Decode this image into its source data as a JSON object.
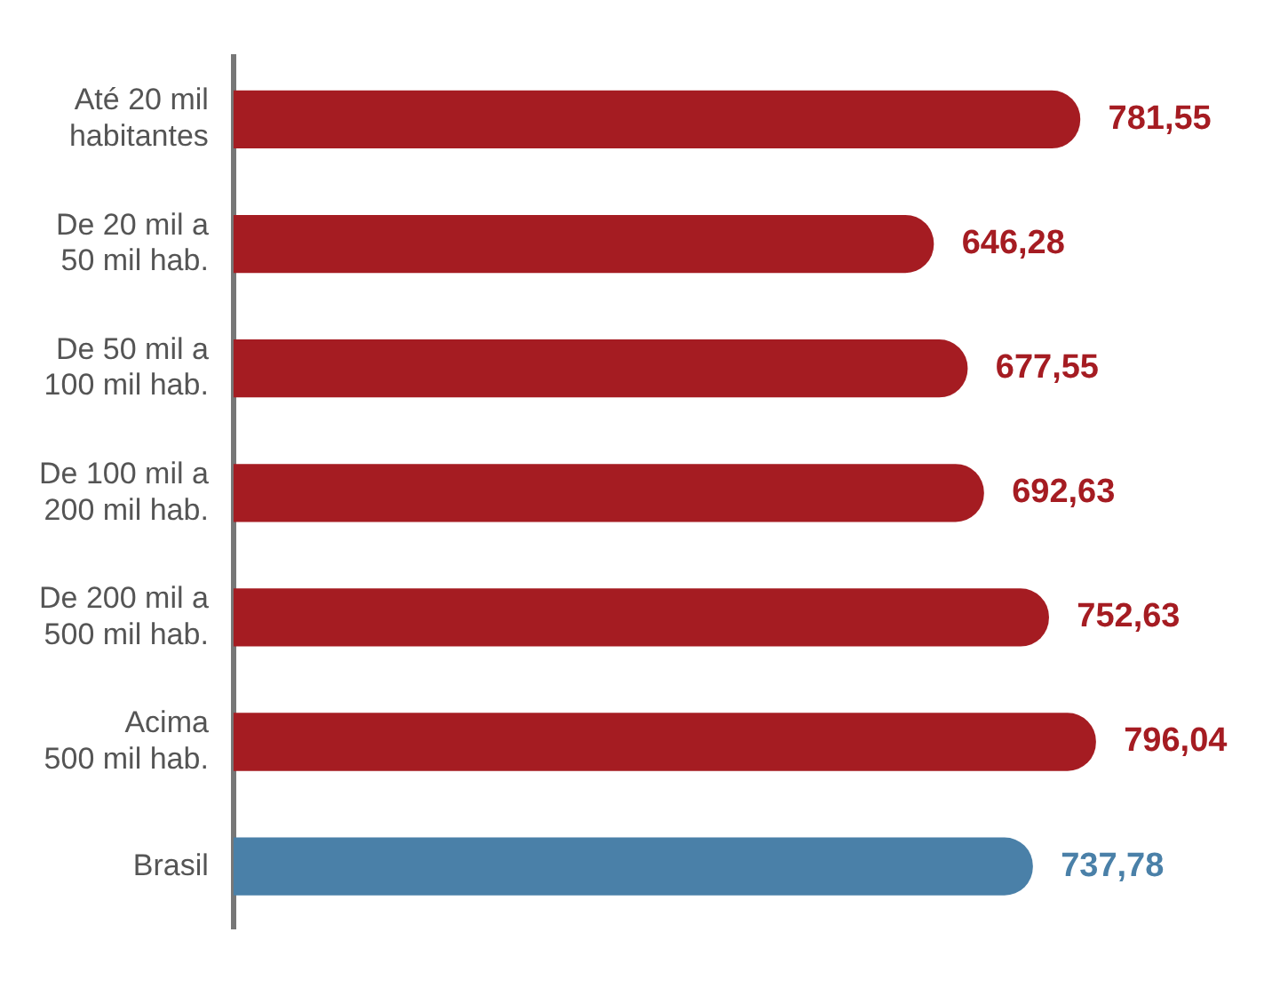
{
  "chart_data": {
    "type": "bar",
    "orientation": "horizontal",
    "categories": [
      "Até 20 mil\nhabitantes",
      "De 20 mil a\n50 mil hab.",
      "De 50 mil a\n100 mil hab.",
      "De 100 mil a\n200 mil hab.",
      "De 200 mil a\n500 mil hab.",
      "Acima\n500 mil hab.",
      "Brasil"
    ],
    "values": [
      781.55,
      646.28,
      677.55,
      692.63,
      752.63,
      796.04,
      737.78
    ],
    "colors": [
      "#a51c22",
      "#a51c22",
      "#a51c22",
      "#a51c22",
      "#a51c22",
      "#a51c22",
      "#4a80a8"
    ],
    "value_labels": [
      "781,55",
      "646,28",
      "677,55",
      "692,63",
      "752,63",
      "796,04",
      "737,78"
    ],
    "legend": false
  }
}
